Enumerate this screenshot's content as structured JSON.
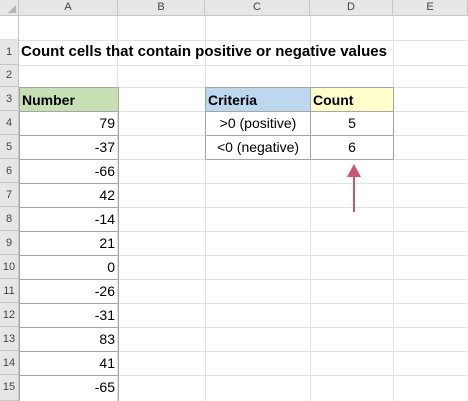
{
  "columns": [
    "A",
    "B",
    "C",
    "D",
    "E"
  ],
  "rows": [
    "1",
    "2",
    "3",
    "4",
    "5",
    "6",
    "7",
    "8",
    "9",
    "10",
    "11",
    "12",
    "13",
    "14",
    "15"
  ],
  "title": "Count cells that contain positive or negative values",
  "number_header": "Number",
  "numbers": [
    "79",
    "-37",
    "-66",
    "42",
    "-14",
    "21",
    "0",
    "-26",
    "-31",
    "83",
    "41",
    "-65"
  ],
  "summary": {
    "criteria_header": "Criteria",
    "count_header": "Count",
    "rows": [
      {
        "criteria": ">0 (positive)",
        "count": "5"
      },
      {
        "criteria": "<0 (negative)",
        "count": "6"
      }
    ]
  },
  "colors": {
    "number_header_bg": "#c6e0b4",
    "criteria_header_bg": "#bdd7ee",
    "count_header_bg": "#ffffcc",
    "arrow": "#c9566e"
  },
  "arrow_icon": "arrow-up-icon"
}
